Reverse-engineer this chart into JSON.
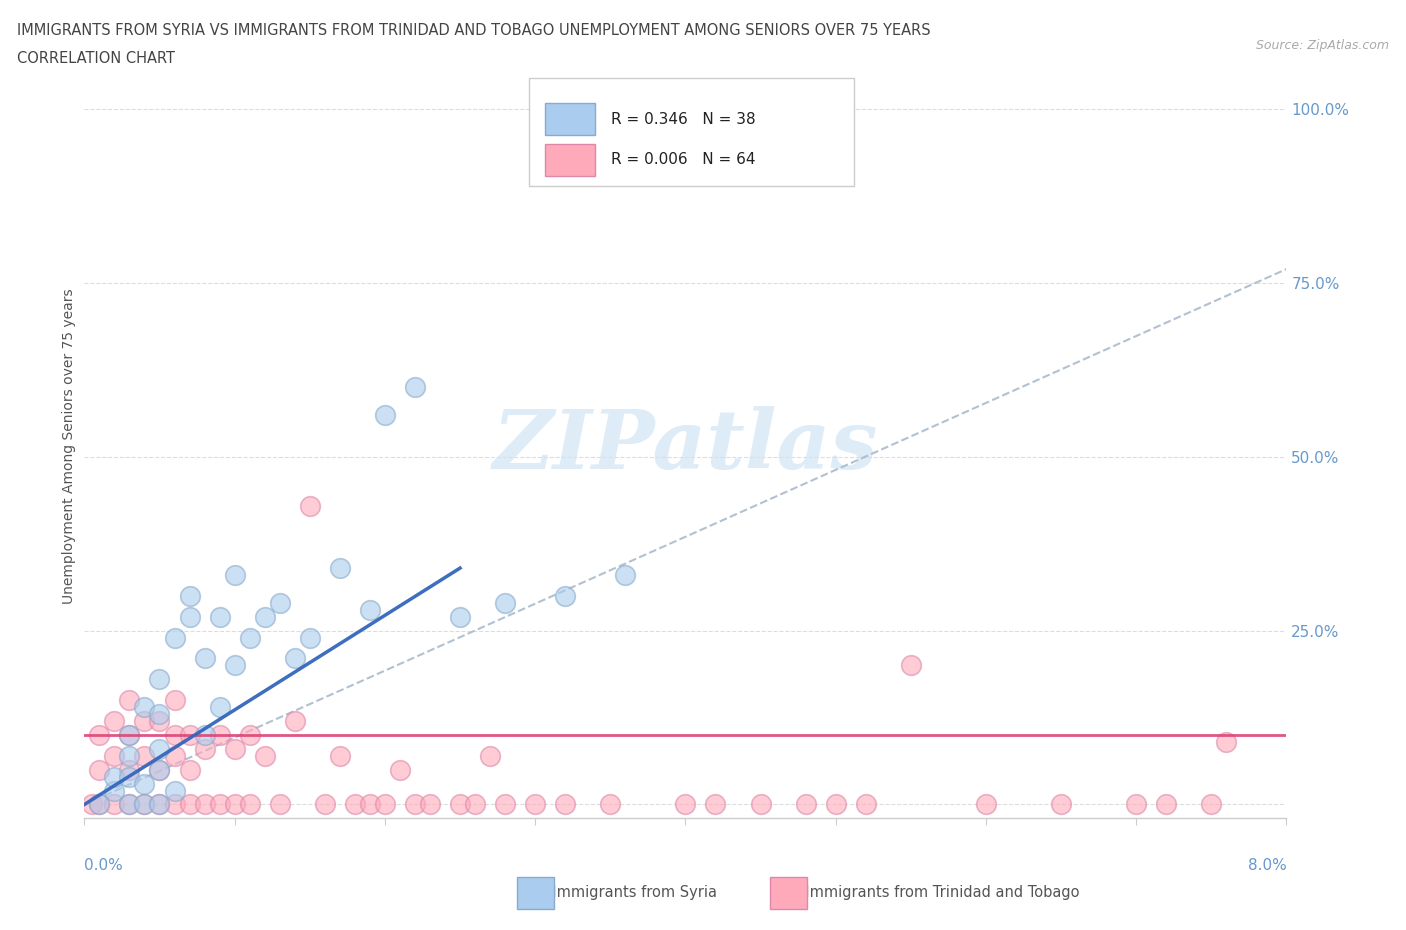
{
  "title_line1": "IMMIGRANTS FROM SYRIA VS IMMIGRANTS FROM TRINIDAD AND TOBAGO UNEMPLOYMENT AMONG SENIORS OVER 75 YEARS",
  "title_line2": "CORRELATION CHART",
  "source_text": "Source: ZipAtlas.com",
  "ylabel": "Unemployment Among Seniors over 75 years",
  "yticks": [
    0.0,
    0.25,
    0.5,
    0.75,
    1.0
  ],
  "ytick_labels": [
    "",
    "25.0%",
    "50.0%",
    "75.0%",
    "100.0%"
  ],
  "xlim": [
    0.0,
    0.08
  ],
  "ylim": [
    -0.02,
    1.05
  ],
  "syria_color": "#aaccee",
  "syria_edge_color": "#88aacc",
  "trinidad_color": "#ffaabb",
  "trinidad_edge_color": "#dd88aa",
  "syria_R": 0.346,
  "syria_N": 38,
  "trinidad_R": 0.006,
  "trinidad_N": 64,
  "trend_syria_color": "#3366bb",
  "trend_trinidad_color": "#dd4477",
  "trend_dashed_color": "#aabbcc",
  "watermark_color": "#d0e4f4",
  "syria_x": [
    0.001,
    0.002,
    0.002,
    0.003,
    0.003,
    0.003,
    0.003,
    0.004,
    0.004,
    0.004,
    0.005,
    0.005,
    0.005,
    0.005,
    0.005,
    0.006,
    0.006,
    0.007,
    0.007,
    0.008,
    0.008,
    0.009,
    0.009,
    0.01,
    0.01,
    0.011,
    0.012,
    0.013,
    0.014,
    0.015,
    0.017,
    0.019,
    0.02,
    0.022,
    0.025,
    0.028,
    0.032,
    0.036
  ],
  "syria_y": [
    0.0,
    0.02,
    0.04,
    0.0,
    0.04,
    0.07,
    0.1,
    0.0,
    0.03,
    0.14,
    0.0,
    0.05,
    0.08,
    0.13,
    0.18,
    0.02,
    0.24,
    0.27,
    0.3,
    0.1,
    0.21,
    0.14,
    0.27,
    0.2,
    0.33,
    0.24,
    0.27,
    0.29,
    0.21,
    0.24,
    0.34,
    0.28,
    0.56,
    0.6,
    0.27,
    0.29,
    0.3,
    0.33
  ],
  "trinidad_x": [
    0.0005,
    0.001,
    0.001,
    0.001,
    0.002,
    0.002,
    0.002,
    0.003,
    0.003,
    0.003,
    0.003,
    0.004,
    0.004,
    0.004,
    0.005,
    0.005,
    0.005,
    0.006,
    0.006,
    0.006,
    0.006,
    0.007,
    0.007,
    0.007,
    0.008,
    0.008,
    0.009,
    0.009,
    0.01,
    0.01,
    0.011,
    0.011,
    0.012,
    0.013,
    0.014,
    0.015,
    0.016,
    0.017,
    0.018,
    0.019,
    0.02,
    0.021,
    0.022,
    0.023,
    0.025,
    0.026,
    0.027,
    0.028,
    0.03,
    0.032,
    0.035,
    0.04,
    0.042,
    0.045,
    0.048,
    0.05,
    0.052,
    0.055,
    0.06,
    0.065,
    0.07,
    0.072,
    0.075,
    0.076
  ],
  "trinidad_y": [
    0.0,
    0.0,
    0.05,
    0.1,
    0.0,
    0.07,
    0.12,
    0.0,
    0.05,
    0.1,
    0.15,
    0.0,
    0.07,
    0.12,
    0.0,
    0.05,
    0.12,
    0.0,
    0.07,
    0.1,
    0.15,
    0.0,
    0.05,
    0.1,
    0.0,
    0.08,
    0.0,
    0.1,
    0.0,
    0.08,
    0.0,
    0.1,
    0.07,
    0.0,
    0.12,
    0.43,
    0.0,
    0.07,
    0.0,
    0.0,
    0.0,
    0.05,
    0.0,
    0.0,
    0.0,
    0.0,
    0.07,
    0.0,
    0.0,
    0.0,
    0.0,
    0.0,
    0.0,
    0.0,
    0.0,
    0.0,
    0.0,
    0.2,
    0.0,
    0.0,
    0.0,
    0.0,
    0.0,
    0.09
  ],
  "syria_trend_x0": 0.0,
  "syria_trend_y0": 0.0,
  "syria_trend_x1": 0.025,
  "syria_trend_y1": 0.34,
  "dashed_trend_x0": 0.0,
  "dashed_trend_y0": 0.0,
  "dashed_trend_x1": 0.08,
  "dashed_trend_y1": 0.77,
  "trinidad_trend_x0": 0.0,
  "trinidad_trend_x1": 0.08,
  "trinidad_trend_y": 0.1,
  "background_color": "#ffffff",
  "grid_color": "#dddddd",
  "axis_color": "#cccccc",
  "title_color": "#444444",
  "label_color": "#555555",
  "tick_color": "#6699cc"
}
